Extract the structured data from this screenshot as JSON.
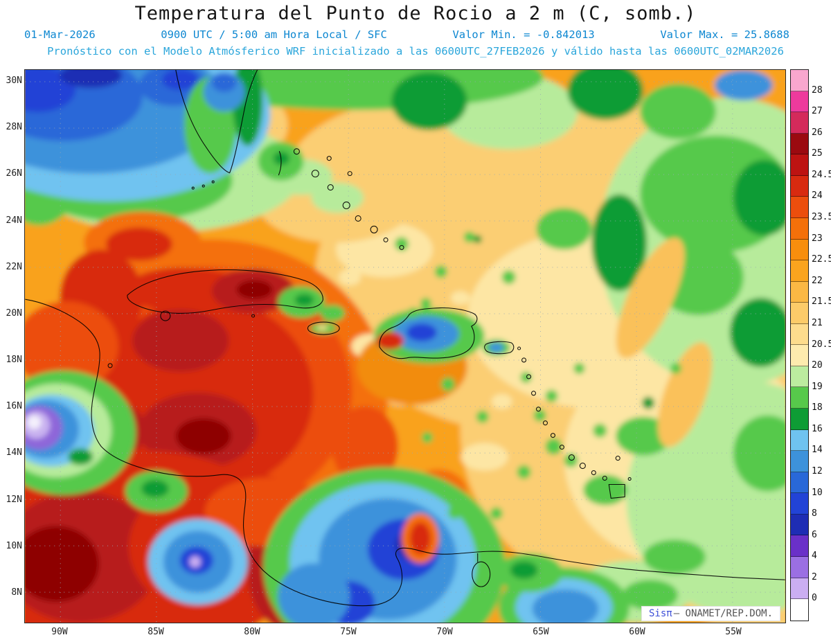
{
  "title": "Temperatura del Punto de Rocio a 2 m (C, somb.)",
  "header": {
    "date": "01-Mar-2026",
    "time_info": "0900 UTC / 5:00 am Hora Local / SFC",
    "min_value": "Valor Min. = -0.842013",
    "max_value": "Valor Max. = 25.8688",
    "forecast": "Pronóstico con el Modelo Atmósferico WRF inicializado a las 0600UTC_27FEB2026 y válido hasta las  0600UTC_02MAR2026"
  },
  "watermark": {
    "brand": "Sisπ",
    "rest": "– ONAMET/REP.DOM."
  },
  "axes": {
    "lat": [
      "30N",
      "28N",
      "26N",
      "24N",
      "22N",
      "20N",
      "18N",
      "16N",
      "14N",
      "12N",
      "10N",
      "8N"
    ],
    "lon": [
      "90W",
      "85W",
      "80W",
      "75W",
      "70W",
      "65W",
      "60W",
      "55W"
    ]
  },
  "colorbar": {
    "labels": [
      "28",
      "27",
      "26",
      "25",
      "24.5",
      "24",
      "23.5",
      "23",
      "22.5",
      "22",
      "21.5",
      "21",
      "20.5",
      "20",
      "19",
      "18",
      "16",
      "14",
      "12",
      "10",
      "8",
      "6",
      "4",
      "2",
      "0"
    ],
    "colors": [
      "#F9A7CE",
      "#EE3A9C",
      "#D42A5B",
      "#9B0A10",
      "#BD1312",
      "#D82A10",
      "#EC4E0D",
      "#F4700A",
      "#F88E0D",
      "#FAA41E",
      "#FBB844",
      "#FCCB69",
      "#FDDC8D",
      "#FEEBAE",
      "#BCEC9F",
      "#57C94B",
      "#0E9C35",
      "#6FC3F0",
      "#3D92DB",
      "#2968D8",
      "#2243D6",
      "#1E2DB4",
      "#6A30C8",
      "#9B6FE3",
      "#CBAEF2",
      "#FFFFFF"
    ]
  },
  "chart_data": {
    "type": "heatmap",
    "title": "Temperatura del Punto de Rocio a 2 m (C, somb.)",
    "units": "C",
    "valid_time": "01-Mar-2026 0900 UTC / 5:00 am Hora Local / SFC",
    "model": "WRF",
    "initialized": "0600UTC_27FEB2026",
    "valid_until": "0600UTC_02MAR2026",
    "value_min": -0.842013,
    "value_max": 25.8688,
    "levels": [
      0,
      2,
      4,
      6,
      8,
      10,
      12,
      14,
      16,
      18,
      19,
      20,
      20.5,
      21,
      21.5,
      22,
      22.5,
      23,
      23.5,
      24,
      24.5,
      25,
      26,
      27,
      28
    ],
    "lat_ticks": [
      "30N",
      "28N",
      "26N",
      "24N",
      "22N",
      "20N",
      "18N",
      "16N",
      "14N",
      "12N",
      "10N",
      "8N"
    ],
    "lon_ticks": [
      "90W",
      "85W",
      "80W",
      "75W",
      "70W",
      "65W",
      "60W",
      "55W"
    ],
    "legend_position": "right",
    "grid": "dotted"
  }
}
